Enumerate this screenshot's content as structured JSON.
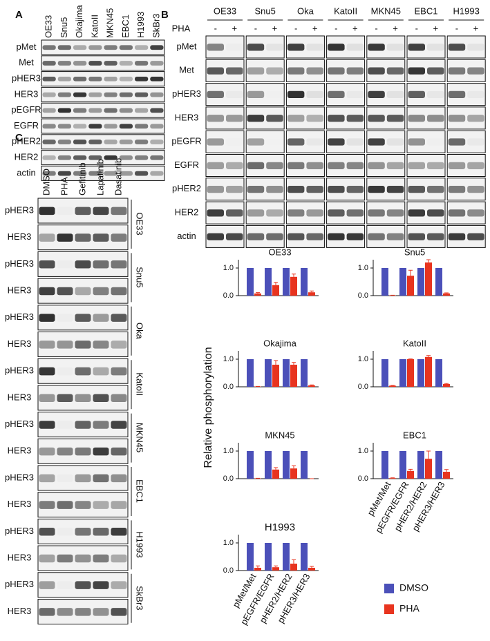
{
  "figure": {
    "panel_a": {
      "letter": "A",
      "columns": [
        "OE33",
        "Snu5",
        "Okajima",
        "KatoII",
        "MKN45",
        "EBC1",
        "H1993",
        "SkBr3"
      ],
      "rows": [
        "pMet",
        "Met",
        "pHER3",
        "HER3",
        "pEGFR",
        "EGFR",
        "pHER2",
        "HER2",
        "actin"
      ]
    },
    "panel_b": {
      "letter": "B",
      "cell_lines": [
        "OE33",
        "Snu5",
        "Oka",
        "KatoII",
        "MKN45",
        "EBC1",
        "H1993"
      ],
      "treatment_label": "PHA",
      "treatment_levels": [
        "-",
        "+"
      ],
      "rows": [
        "pMet",
        "Met",
        "pHER3",
        "HER3",
        "pEGFR",
        "EGFR",
        "pHER2",
        "HER2",
        "actin"
      ]
    },
    "panel_c": {
      "letter": "C",
      "columns": [
        "DMSO",
        "PHA",
        "Gefitinib",
        "Lapatinib",
        "Dasatinib"
      ],
      "groups": [
        {
          "cell_line": "OE33",
          "rows": [
            "pHER3",
            "HER3"
          ]
        },
        {
          "cell_line": "Snu5",
          "rows": [
            "pHER3",
            "HER3"
          ]
        },
        {
          "cell_line": "Oka",
          "rows": [
            "pHER3",
            "HER3"
          ]
        },
        {
          "cell_line": "KatoII",
          "rows": [
            "pHER3",
            "HER3"
          ]
        },
        {
          "cell_line": "MKN45",
          "rows": [
            "pHER3",
            "HER3"
          ]
        },
        {
          "cell_line": "EBC1",
          "rows": [
            "pHER3",
            "HER3"
          ]
        },
        {
          "cell_line": "H1993",
          "rows": [
            "pHER3",
            "HER3"
          ]
        },
        {
          "cell_line": "SkBr3",
          "rows": [
            "pHER3",
            "HER3"
          ]
        }
      ]
    }
  },
  "y_axis_label": "Relative phosphorylation",
  "legend": [
    {
      "name": "DMSO",
      "color": "#4b50b9"
    },
    {
      "name": "PHA",
      "color": "#e8341f"
    }
  ],
  "chart_data": [
    {
      "type": "bar",
      "title": "OE33",
      "ylim": [
        0,
        1.3
      ],
      "yticks": [
        {
          "value": 0,
          "label": "0.0"
        },
        {
          "value": 1,
          "label": "1.0"
        }
      ],
      "series": [
        {
          "values": [
            1,
            1,
            1,
            1
          ]
        },
        {
          "values": [
            0.08,
            0.38,
            0.68,
            0.12
          ],
          "errors": [
            0.03,
            0.1,
            0.1,
            0.05
          ]
        }
      ]
    },
    {
      "type": "bar",
      "title": "Snu5",
      "ylim": [
        0,
        1.3
      ],
      "yticks": [
        {
          "value": 0,
          "label": "0.0"
        },
        {
          "value": 1,
          "label": "1.0"
        }
      ],
      "series": [
        {
          "values": [
            1,
            1,
            1,
            1
          ]
        },
        {
          "values": [
            0.01,
            0.72,
            1.2,
            0.08
          ],
          "errors": [
            0.005,
            0.2,
            0.1,
            0.02
          ]
        }
      ]
    },
    {
      "type": "bar",
      "title": "Okajima",
      "ylim": [
        0,
        1.3
      ],
      "yticks": [
        {
          "value": 0,
          "label": "0.0"
        },
        {
          "value": 1,
          "label": "1.0"
        }
      ],
      "series": [
        {
          "values": [
            1,
            1,
            1,
            1
          ]
        },
        {
          "values": [
            0.01,
            0.8,
            0.8,
            0.05
          ],
          "errors": [
            0.005,
            0.15,
            0.08,
            0.02
          ]
        }
      ]
    },
    {
      "type": "bar",
      "title": "KatoII",
      "ylim": [
        0,
        1.3
      ],
      "yticks": [
        {
          "value": 0,
          "label": "0.0"
        },
        {
          "value": 1,
          "label": "1.0"
        }
      ],
      "series": [
        {
          "values": [
            1,
            1,
            1,
            1
          ]
        },
        {
          "values": [
            0.04,
            1.0,
            1.08,
            0.1
          ],
          "errors": [
            0.01,
            0.01,
            0.05,
            0.02
          ]
        }
      ]
    },
    {
      "type": "bar",
      "title": "MKN45",
      "ylim": [
        0,
        1.3
      ],
      "yticks": [
        {
          "value": 0,
          "label": "0.0"
        },
        {
          "value": 1,
          "label": "1.0"
        }
      ],
      "series": [
        {
          "values": [
            1,
            1,
            1,
            1
          ]
        },
        {
          "values": [
            0.01,
            0.33,
            0.37,
            0.0
          ],
          "errors": [
            0.005,
            0.07,
            0.1,
            0.0
          ]
        }
      ]
    },
    {
      "type": "bar",
      "title": "EBC1",
      "ylim": [
        0,
        1.3
      ],
      "yticks": [
        {
          "value": 0,
          "label": "0.0"
        },
        {
          "value": 1,
          "label": "1.0"
        }
      ],
      "categories": [
        "pMet/Met",
        "pEGFR/EGFR",
        "pHER2/HER2",
        "pHER3/HER3"
      ],
      "series": [
        {
          "values": [
            1,
            1,
            1,
            1
          ]
        },
        {
          "values": [
            0.02,
            0.28,
            0.72,
            0.25
          ],
          "errors": [
            0.01,
            0.06,
            0.28,
            0.08
          ]
        }
      ]
    },
    {
      "type": "bar",
      "title": "H1993",
      "ylim": [
        0,
        1.3
      ],
      "yticks": [
        {
          "value": 0,
          "label": "0.0"
        },
        {
          "value": 1,
          "label": "1.0"
        }
      ],
      "categories": [
        "pMet/Met",
        "pEGFR/EGFR",
        "pHER2/HER2",
        "pHER3/HER3"
      ],
      "series": [
        {
          "values": [
            1,
            1,
            1,
            1
          ]
        },
        {
          "values": [
            0.1,
            0.12,
            0.25,
            0.1
          ],
          "errors": [
            0.07,
            0.05,
            0.14,
            0.05
          ]
        }
      ]
    }
  ]
}
